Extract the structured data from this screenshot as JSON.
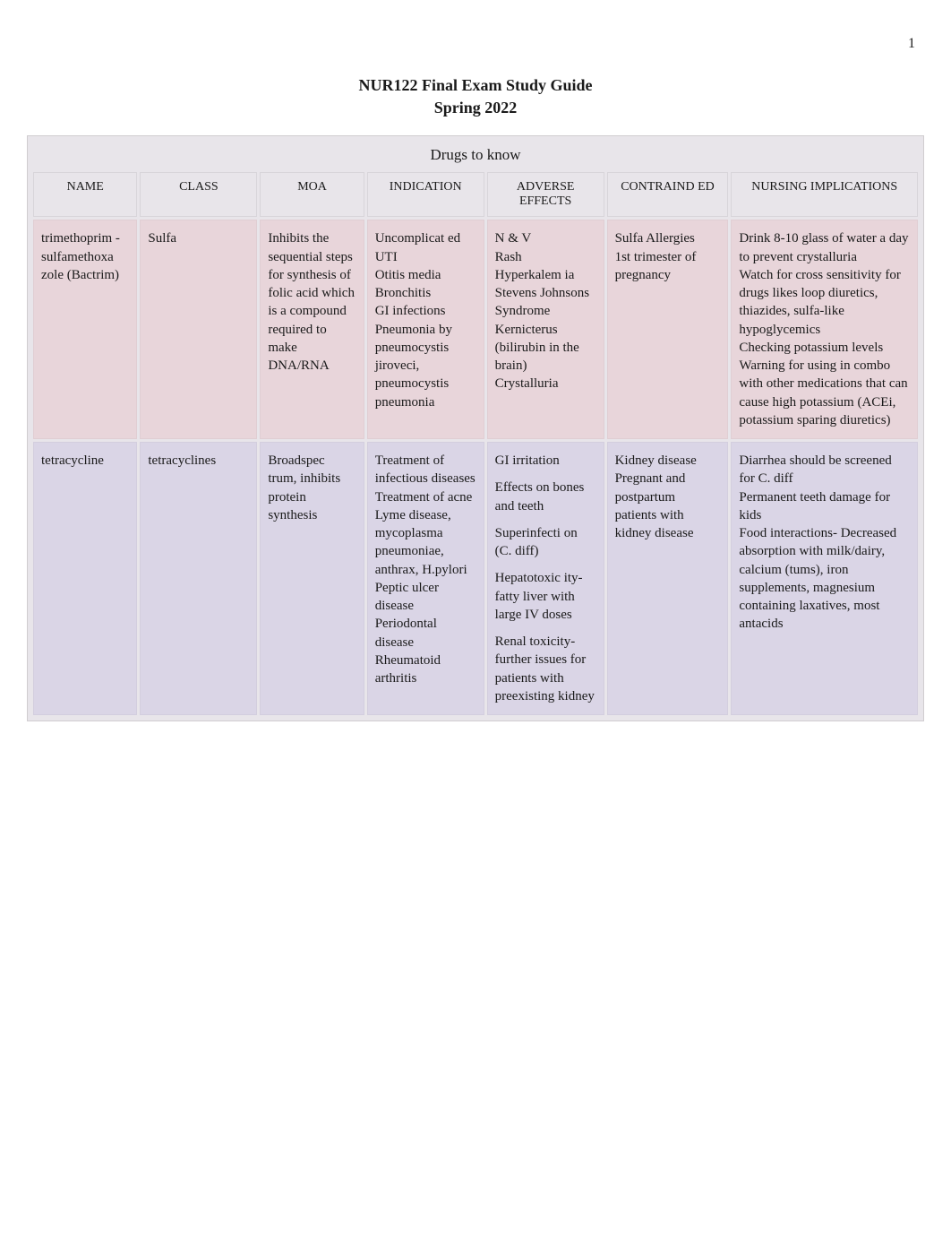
{
  "page_number": "1",
  "title_line1": "NUR122 Final Exam Study Guide",
  "title_line2": "Spring 2022",
  "table_caption": "Drugs to know",
  "columns": [
    "NAME",
    "CLASS",
    "MOA",
    "INDICATION",
    "ADVERSE EFFECTS",
    "CONTRAIND ED",
    "NURSING IMPLICATIONS"
  ],
  "rows": [
    {
      "name": "trimethoprim - sulfamethoxa zole (Bactrim)",
      "class": "Sulfa",
      "moa": "Inhibits the sequential steps for synthesis of folic acid which is a compound required to make DNA/RNA",
      "indication": "Uncomplicat ed UTI\nOtitis media\nBronchitis\nGI infections\nPneumonia by pneumocystis jiroveci, pneumocystis pneumonia",
      "adverse": "N & V\nRash\nHyperkalem ia\nStevens Johnsons Syndrome\nKernicterus (bilirubin in the brain)\nCrystalluria",
      "contra": "Sulfa Allergies\n1st trimester of pregnancy",
      "nursing": "Drink 8-10 glass of water a day to prevent crystalluria\nWatch for cross sensitivity for drugs likes loop diuretics, thiazides, sulfa-like hypoglycemics\nChecking potassium levels\nWarning for using in combo with other medications that can cause high potassium (ACEi, potassium sparing diuretics)"
    },
    {
      "name": "tetracycline",
      "class": "tetracyclines",
      "moa": "Broadspec trum, inhibits protein synthesis",
      "indication": "Treatment of infectious diseases\nTreatment of acne\nLyme disease, mycoplasma pneumoniae, anthrax, H.pylori\nPeptic ulcer disease\nPeriodontal disease\nRheumatoid arthritis",
      "adverse_spaced": true,
      "adverse": "GI irritation\nEffects on bones and teeth\nSuperinfecti on (C. diff)\nHepatotoxic ity- fatty liver with large IV doses\nRenal toxicity- further issues for patients with preexisting kidney",
      "contra": "Kidney disease\nPregnant and postpartum patients with kidney disease",
      "nursing": "Diarrhea should be screened for C. diff\nPermanent teeth damage for kids\nFood interactions- Decreased absorption with milk/dairy, calcium (tums), iron supplements, magnesium containing laxatives, most antacids"
    }
  ],
  "styles": {
    "row_bg": [
      "#e8d5da",
      "#dad5e6"
    ],
    "header_bg": "#e8e5ea",
    "border_color": "#d0cdd0",
    "text_color": "#1a1a1a",
    "font_family": "Georgia, serif",
    "body_width": 1062,
    "col_widths_pct": [
      12,
      13.5,
      12,
      13.5,
      13.5,
      14,
      21.5
    ]
  }
}
